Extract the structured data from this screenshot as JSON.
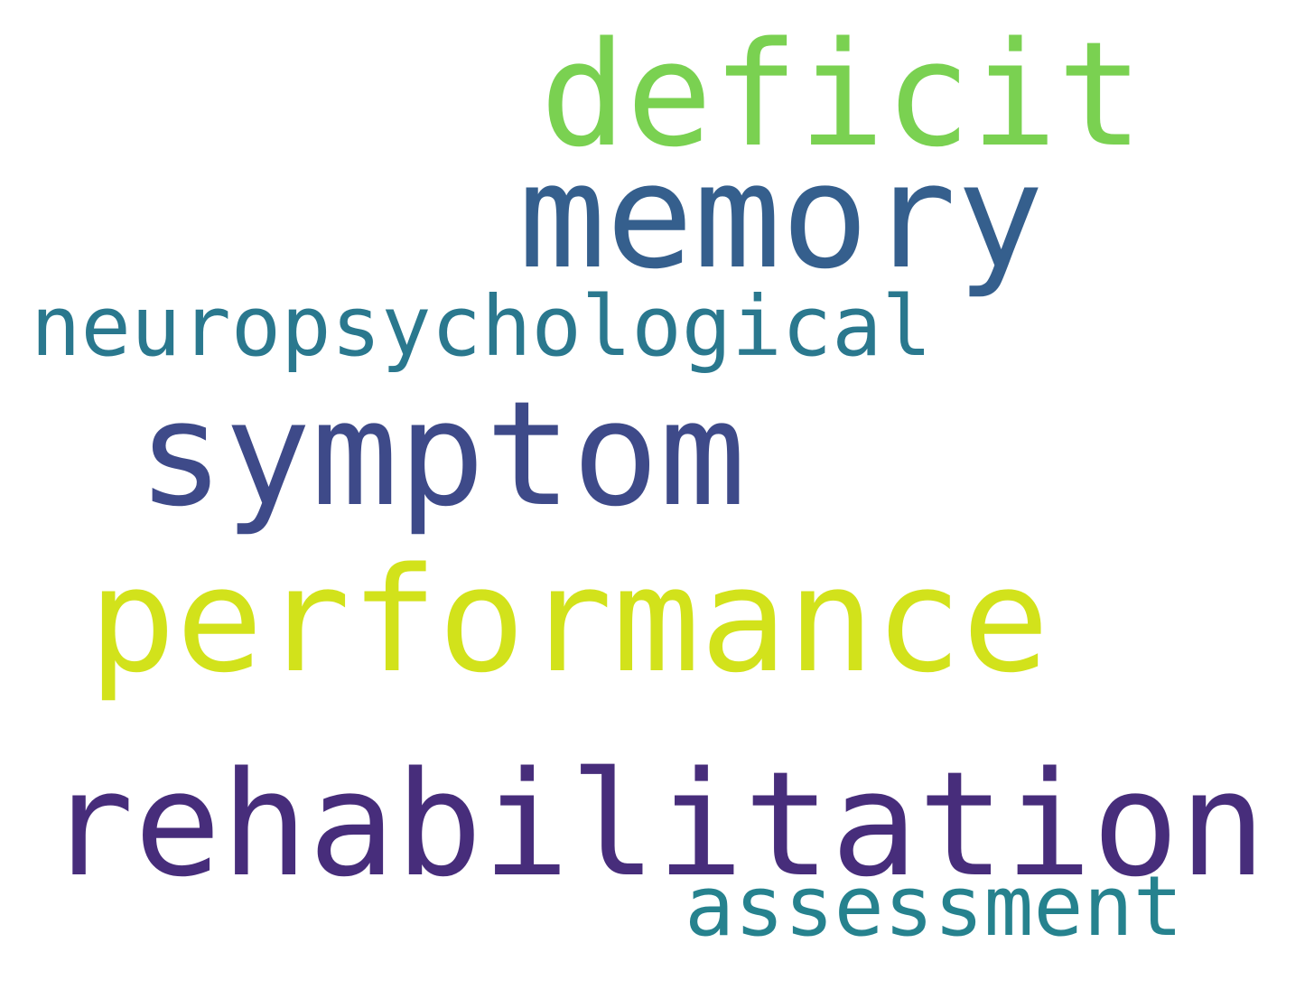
{
  "words": [
    {
      "text": "deficit",
      "color": "#7ad151"
    },
    {
      "text": "memory",
      "color": "#355f8d"
    },
    {
      "text": "neuropsychological",
      "color": "#2a788e"
    },
    {
      "text": "symptom",
      "color": "#3e4a89"
    },
    {
      "text": "performance",
      "color": "#d2e21b"
    },
    {
      "text": "rehabilitation",
      "color": "#472d7b"
    },
    {
      "text": "assessment",
      "color": "#26828e"
    }
  ]
}
